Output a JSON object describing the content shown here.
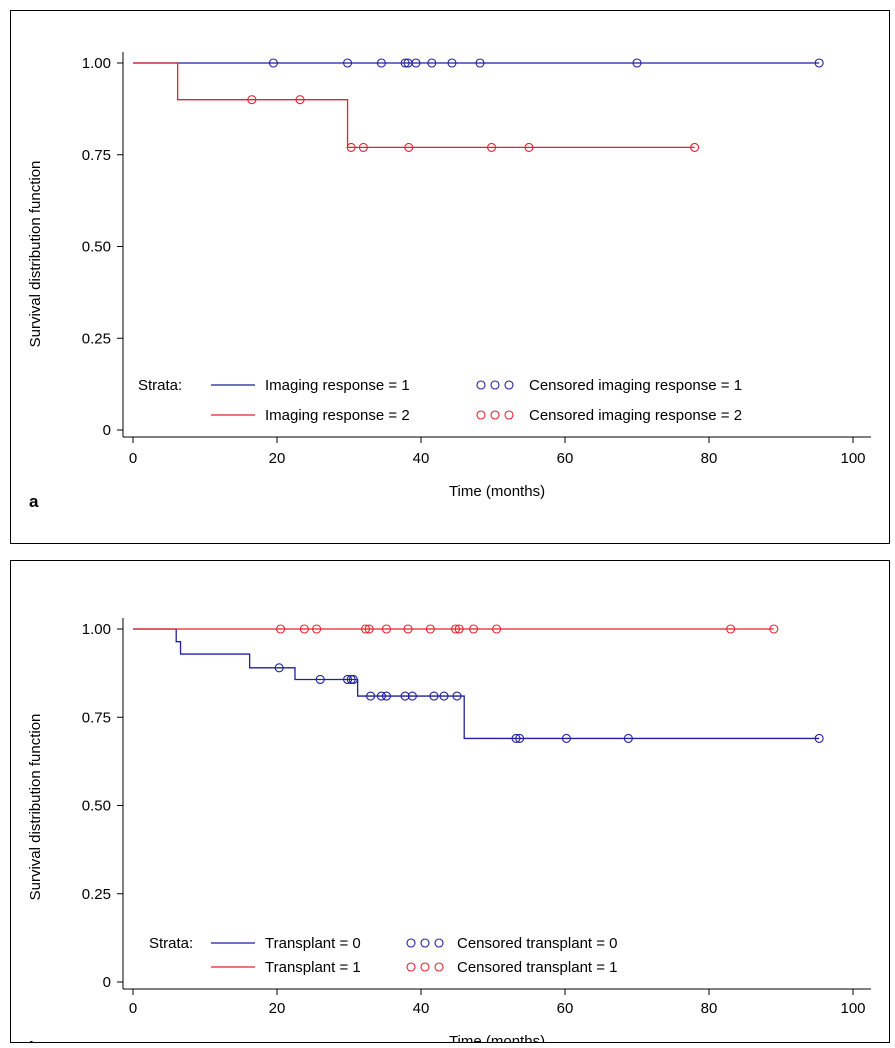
{
  "chart_data": [
    {
      "type": "line",
      "panel_label": "a",
      "xlabel": "Time (months)",
      "ylabel": "Survival distribution function",
      "xlim": [
        0,
        100
      ],
      "ylim": [
        0,
        1
      ],
      "xticks": [
        0,
        20,
        40,
        60,
        80,
        100
      ],
      "yticks": [
        0,
        0.25,
        0.5,
        0.75,
        1.0
      ],
      "xtick_labels": [
        "0",
        "20",
        "40",
        "60",
        "80",
        "100"
      ],
      "ytick_labels": [
        "0",
        "0.25",
        "0.50",
        "0.75",
        "1.00"
      ],
      "legend_strata_label": "Strata:",
      "series": [
        {
          "name": "Imaging response = 1",
          "censored_name": "Censored imaging response = 1",
          "color": "#1f1f9f",
          "steps": [
            [
              0,
              1.0
            ],
            [
              95.3,
              1.0
            ]
          ],
          "censored": [
            [
              19.5,
              1.0
            ],
            [
              29.8,
              1.0
            ],
            [
              34.5,
              1.0
            ],
            [
              37.8,
              1.0
            ],
            [
              38.2,
              1.0
            ],
            [
              39.3,
              1.0
            ],
            [
              41.5,
              1.0
            ],
            [
              44.3,
              1.0
            ],
            [
              48.2,
              1.0
            ],
            [
              70.0,
              1.0
            ],
            [
              95.3,
              1.0
            ]
          ]
        },
        {
          "name": "Imaging response = 2",
          "censored_name": "Censored imaging response = 2",
          "color": "#e8202a",
          "steps": [
            [
              0,
              1.0
            ],
            [
              6.2,
              0.9
            ],
            [
              29.8,
              0.77
            ],
            [
              78.0,
              0.77
            ]
          ],
          "censored": [
            [
              16.5,
              0.9
            ],
            [
              23.2,
              0.9
            ],
            [
              30.3,
              0.77
            ],
            [
              32.0,
              0.77
            ],
            [
              38.3,
              0.77
            ],
            [
              49.8,
              0.77
            ],
            [
              55.0,
              0.77
            ],
            [
              78.0,
              0.77
            ]
          ]
        }
      ]
    },
    {
      "type": "line",
      "panel_label": "b",
      "xlabel": "Time (months)",
      "ylabel": "Survival distribution function",
      "xlim": [
        0,
        100
      ],
      "ylim": [
        0,
        1
      ],
      "xticks": [
        0,
        20,
        40,
        60,
        80,
        100
      ],
      "yticks": [
        0,
        0.25,
        0.5,
        0.75,
        1.0
      ],
      "xtick_labels": [
        "0",
        "20",
        "40",
        "60",
        "80",
        "100"
      ],
      "ytick_labels": [
        "0",
        "0.25",
        "0.50",
        "0.75",
        "1.00"
      ],
      "legend_strata_label": "Strata:",
      "series": [
        {
          "name": "Transplant = 0",
          "censored_name": "Censored transplant = 0",
          "color": "#1f1f9f",
          "steps": [
            [
              0,
              1.0
            ],
            [
              6.0,
              0.964
            ],
            [
              6.6,
              0.929
            ],
            [
              16.2,
              0.89
            ],
            [
              22.5,
              0.857
            ],
            [
              31.2,
              0.81
            ],
            [
              46.0,
              0.69
            ],
            [
              95.3,
              0.69
            ]
          ],
          "censored": [
            [
              20.3,
              0.89
            ],
            [
              26.0,
              0.857
            ],
            [
              29.8,
              0.857
            ],
            [
              30.3,
              0.857
            ],
            [
              30.6,
              0.857
            ],
            [
              33.0,
              0.81
            ],
            [
              34.5,
              0.81
            ],
            [
              35.2,
              0.81
            ],
            [
              37.8,
              0.81
            ],
            [
              38.8,
              0.81
            ],
            [
              41.8,
              0.81
            ],
            [
              43.2,
              0.81
            ],
            [
              45.0,
              0.81
            ],
            [
              53.2,
              0.69
            ],
            [
              53.7,
              0.69
            ],
            [
              60.2,
              0.69
            ],
            [
              68.8,
              0.69
            ],
            [
              95.3,
              0.69
            ]
          ]
        },
        {
          "name": "Transplant = 1",
          "censored_name": "Censored transplant = 1",
          "color": "#e8202a",
          "steps": [
            [
              0,
              1.0
            ],
            [
              89.0,
              1.0
            ]
          ],
          "censored": [
            [
              20.5,
              1.0
            ],
            [
              23.8,
              1.0
            ],
            [
              25.5,
              1.0
            ],
            [
              32.3,
              1.0
            ],
            [
              32.8,
              1.0
            ],
            [
              35.2,
              1.0
            ],
            [
              38.2,
              1.0
            ],
            [
              41.3,
              1.0
            ],
            [
              44.8,
              1.0
            ],
            [
              45.3,
              1.0
            ],
            [
              47.3,
              1.0
            ],
            [
              50.5,
              1.0
            ],
            [
              83.0,
              1.0
            ],
            [
              89.0,
              1.0
            ]
          ]
        }
      ]
    }
  ]
}
